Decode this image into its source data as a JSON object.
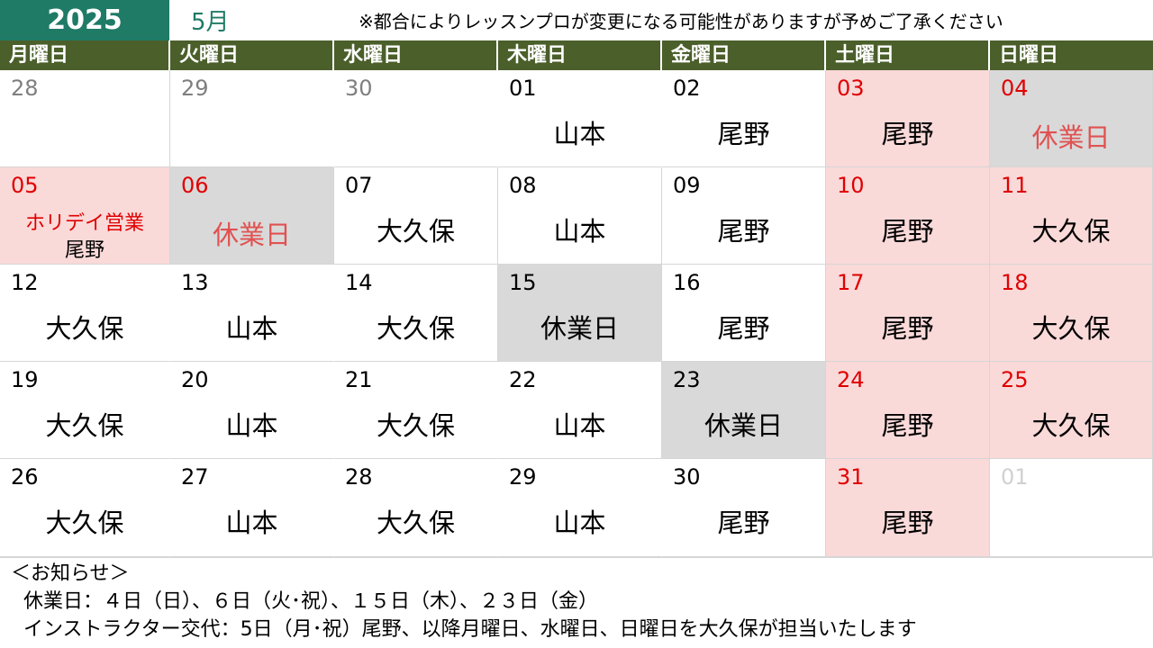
{
  "header": {
    "year": "2025",
    "month": "5月",
    "notice": "※都合によりレッスンプロが変更になる可能性がありますが予めご了承ください"
  },
  "weekdays": [
    "月曜日",
    "火曜日",
    "水曜日",
    "木曜日",
    "金曜日",
    "土曜日",
    "日曜日"
  ],
  "rows": [
    [
      {
        "day": "28",
        "name": ""
      },
      {
        "day": "29",
        "name": ""
      },
      {
        "day": "30",
        "name": ""
      },
      {
        "day": "01",
        "name": "山本"
      },
      {
        "day": "02",
        "name": "尾野"
      },
      {
        "day": "03",
        "name": "尾野"
      },
      {
        "day": "04",
        "name": "休業日"
      }
    ],
    [
      {
        "day": "05",
        "holiday": "ホリデイ営業",
        "name": "尾野"
      },
      {
        "day": "06",
        "name": "休業日"
      },
      {
        "day": "07",
        "name": "大久保"
      },
      {
        "day": "08",
        "name": "山本"
      },
      {
        "day": "09",
        "name": "尾野"
      },
      {
        "day": "10",
        "name": "尾野"
      },
      {
        "day": "11",
        "name": "大久保"
      }
    ],
    [
      {
        "day": "12",
        "name": "大久保"
      },
      {
        "day": "13",
        "name": "山本"
      },
      {
        "day": "14",
        "name": "大久保"
      },
      {
        "day": "15",
        "name": "休業日"
      },
      {
        "day": "16",
        "name": "尾野"
      },
      {
        "day": "17",
        "name": "尾野"
      },
      {
        "day": "18",
        "name": "大久保"
      }
    ],
    [
      {
        "day": "19",
        "name": "大久保"
      },
      {
        "day": "20",
        "name": "山本"
      },
      {
        "day": "21",
        "name": "大久保"
      },
      {
        "day": "22",
        "name": "山本"
      },
      {
        "day": "23",
        "name": "休業日"
      },
      {
        "day": "24",
        "name": "尾野"
      },
      {
        "day": "25",
        "name": "大久保"
      }
    ],
    [
      {
        "day": "26",
        "name": "大久保"
      },
      {
        "day": "27",
        "name": "山本"
      },
      {
        "day": "28",
        "name": "大久保"
      },
      {
        "day": "29",
        "name": "山本"
      },
      {
        "day": "30",
        "name": "尾野"
      },
      {
        "day": "31",
        "name": "尾野"
      },
      {
        "day": "01",
        "name": ""
      }
    ]
  ],
  "notes": {
    "title": "＜お知らせ＞",
    "closed_days": "休業日：４日（日）、６日（火･祝）、１５日（木）、２３日（金）",
    "instructor_change": "インストラクター交代：5日（月･祝）尾野、以降月曜日、水曜日、日曜日を大久保が担当いたします"
  },
  "colors": {
    "year_bg": "#1f7a66",
    "header_bg": "#4b5f2b",
    "weekend_bg": "#fad9d9",
    "closed_bg": "#d9d9d9",
    "red_text": "#e00000",
    "closed_text": "#e05252"
  }
}
